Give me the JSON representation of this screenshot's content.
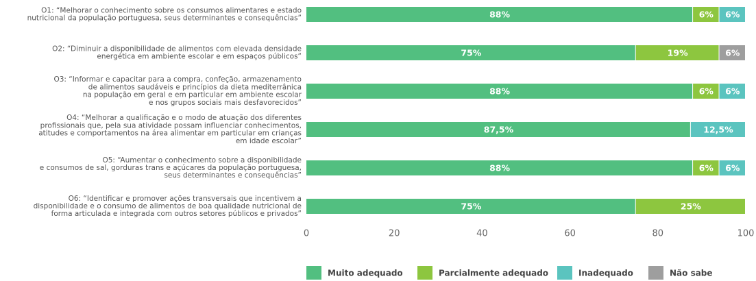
{
  "chart_data": {
    "type": "stacked-bar-horizontal",
    "categories": [
      [
        "O1: “Melhorar o conhecimento sobre os consumos alimentares e estado",
        "nutricional da população portuguesa, seus determinantes e consequências”"
      ],
      [
        "O2: “Diminuir a disponibilidade de alimentos com elevada densidade",
        "energética em ambiente escolar e em espaços públicos”"
      ],
      [
        "O3: “Informar e capacitar para a compra, confeção, armazenamento",
        "de alimentos saudáveis e princípios da dieta mediterrânica",
        "na população em geral e em particular em ambiente escolar",
        "e nos grupos sociais mais desfavorecidos”"
      ],
      [
        "O4: “Melhorar a qualificação e o modo de atuação dos diferentes",
        "profissionais que, pela sua atividade possam influenciar conhecimentos,",
        "atitudes e comportamentos na área alimentar em particular em crianças",
        "em idade escolar”"
      ],
      [
        "O5: “Aumentar o conhecimento sobre a disponibilidade",
        "e consumos de sal, gorduras trans e açúcares da população portuguesa,",
        "seus determinantes e consequências”"
      ],
      [
        "O6: “Identificar e promover ações transversais que incentivem a",
        "disponibilidade e o consumo de alimentos de boa qualidade nutricional de",
        "forma articulada e integrada com outros setores públicos e privados”"
      ]
    ],
    "series": [
      {
        "name": "Muito adequado",
        "color": "#52bf80",
        "values": [
          88,
          75,
          88,
          87.5,
          88,
          75
        ],
        "value_labels": [
          "88%",
          "75%",
          "88%",
          "87,5%",
          "88%",
          "75%"
        ]
      },
      {
        "name": "Parcialmente adequado",
        "color": "#8dc63f",
        "values": [
          6,
          19,
          6,
          null,
          6,
          25
        ],
        "value_labels": [
          "6%",
          "19%",
          "6%",
          null,
          "6%",
          "25%"
        ]
      },
      {
        "name": "Inadequado",
        "color": "#5bc4bf",
        "values": [
          6,
          null,
          6,
          12.5,
          6,
          null
        ],
        "value_labels": [
          "6%",
          null,
          "6%",
          "12,5%",
          "6%",
          null
        ]
      },
      {
        "name": "Não sabe",
        "color": "#9e9e9e",
        "values": [
          null,
          6,
          null,
          null,
          null,
          null
        ],
        "value_labels": [
          null,
          "6%",
          null,
          null,
          null,
          null
        ]
      }
    ],
    "xlim": [
      0,
      100
    ],
    "xticks": [
      0,
      20,
      40,
      60,
      80,
      100
    ]
  }
}
